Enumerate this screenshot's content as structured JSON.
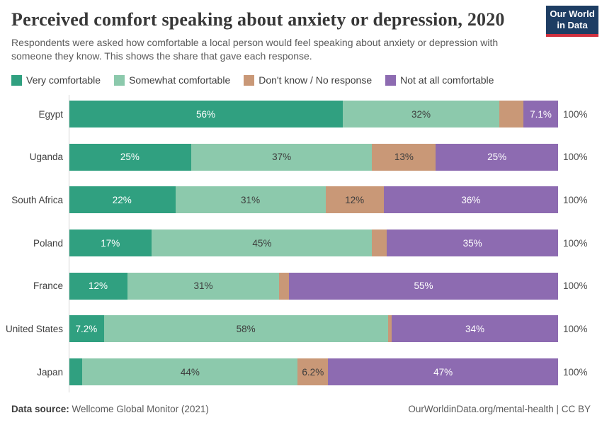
{
  "header": {
    "title": "Perceived comfort speaking about anxiety or depression, 2020",
    "subtitle": "Respondents were asked how comfortable a local person would feel speaking about anxiety or depression with someone they know. This shows the share that gave each response.",
    "logo": {
      "line1": "Our World",
      "line2": "in Data",
      "bg_color": "#1d3d63",
      "stripe_color": "#cf303e"
    }
  },
  "chart_data": {
    "type": "bar",
    "stacked": true,
    "orientation": "horizontal",
    "unit": "%",
    "x_range": [
      0,
      100
    ],
    "grid": false,
    "legend_position": "top",
    "categories": [
      "Egypt",
      "Uganda",
      "South Africa",
      "Poland",
      "France",
      "United States",
      "Japan"
    ],
    "series": [
      {
        "name": "Very comfortable",
        "color": "#30a080",
        "label_color": "#ffffff",
        "values": [
          56,
          25,
          22,
          17,
          12,
          7.2,
          2.8
        ],
        "labels": [
          "56%",
          "25%",
          "22%",
          "17%",
          "12%",
          "7.2%",
          ""
        ]
      },
      {
        "name": "Somewhat comfortable",
        "color": "#8cc9ac",
        "label_color": "#3d3d3d",
        "values": [
          32,
          37,
          31,
          45,
          31,
          58,
          44
        ],
        "labels": [
          "32%",
          "37%",
          "31%",
          "45%",
          "31%",
          "58%",
          "44%"
        ]
      },
      {
        "name": "Don't know / No response",
        "color": "#c99877",
        "label_color": "#3d3d3d",
        "values": [
          4.9,
          13,
          12,
          3,
          2,
          0.8,
          6.2
        ],
        "labels": [
          "",
          "13%",
          "12%",
          "",
          "",
          "",
          "6.2%"
        ]
      },
      {
        "name": "Not at all comfortable",
        "color": "#8d6bb1",
        "label_color": "#ffffff",
        "values": [
          7.1,
          25,
          36,
          35,
          55,
          34,
          47
        ],
        "labels": [
          "7.1%",
          "25%",
          "36%",
          "35%",
          "55%",
          "34%",
          "47%"
        ]
      }
    ],
    "row_total_label": "100%"
  },
  "footer": {
    "source_label": "Data source:",
    "source_value": " Wellcome Global Monitor (2021)",
    "attribution": "OurWorldinData.org/mental-health | CC BY"
  }
}
